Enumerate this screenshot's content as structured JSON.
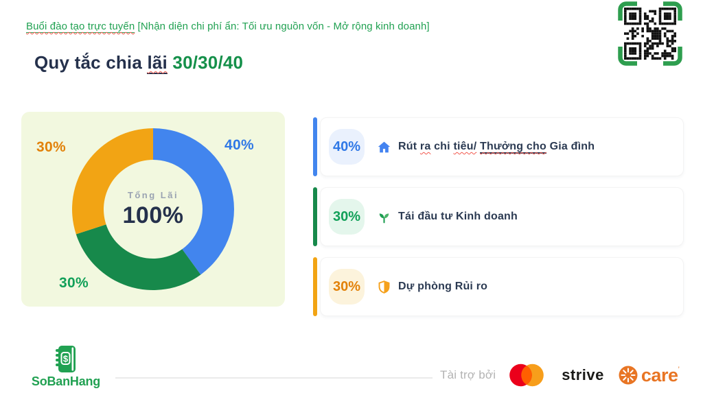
{
  "header": {
    "link_text": "Buổi đào tạo trực tuyến",
    "rest_text": " [Nhận diện chi phí ẩn: Tối ưu nguồn vốn - Mở rộng kinh doanh]"
  },
  "title": {
    "prefix": "Quy tắc chia ",
    "underlined": "lãi",
    "highlight": "30/30/40"
  },
  "chart_data": {
    "type": "pie",
    "subtype": "donut",
    "values": [
      40,
      30,
      30
    ],
    "segment_labels": [
      "40%",
      "30%",
      "30%"
    ],
    "segment_colors": [
      "blue",
      "green",
      "orange"
    ],
    "legend": [
      "Rút ra chi tiêu/ Thưởng cho Gia đình",
      "Tái đầu tư Kinh doanh",
      "Dự phòng Rủi ro"
    ],
    "center_label": "Tổng Lãi",
    "center_value": "100%",
    "start_angle_deg": 0,
    "direction": "clockwise"
  },
  "cards": [
    {
      "theme": "blue",
      "percent": "40%",
      "icon": "house-icon",
      "parts": [
        {
          "t": "Rút "
        },
        {
          "t": "ra",
          "m": "w"
        },
        {
          "t": " chi "
        },
        {
          "t": "tiêu/",
          "m": "w"
        },
        {
          "t": " "
        },
        {
          "t": "Thưởng cho",
          "m": "uw"
        },
        {
          "t": " Gia đình"
        }
      ]
    },
    {
      "theme": "green",
      "percent": "30%",
      "icon": "seedling-icon",
      "parts": [
        {
          "t": "Tái đầu tư Kinh doanh"
        }
      ]
    },
    {
      "theme": "orange",
      "percent": "30%",
      "icon": "shield-icon",
      "parts": [
        {
          "t": "Dự phòng Rủi ro"
        }
      ]
    }
  ],
  "footer": {
    "brand": "SoBanHang",
    "brand_symbol": "$",
    "sponsored_label": "Tài trợ bởi",
    "strive": "strive",
    "care": "care",
    "care_mark": "’"
  },
  "colors": {
    "blue": "#4285EE",
    "green": "#17894B",
    "orange": "#F2A414",
    "blue_text": "#2F78E6",
    "green_text": "#12A059",
    "orange_text": "#E28109",
    "navy": "#25314C",
    "brand_green": "#21A152",
    "title_green": "#15904A",
    "chart_bg": "#F2F8DF",
    "badge_blue_bg": "#EAF1FD",
    "badge_green_bg": "#E4F6EC",
    "badge_orange_bg": "#FCF3DC",
    "center_gray": "#9AA3B2",
    "gray_text": "#B3B3B3",
    "qr_green": "#2E9E4F",
    "mc_red": "#EB001B",
    "mc_orange": "#F79E1B",
    "mc_overlap": "#FF5F00",
    "care_orange": "#E87524",
    "strive_black": "#1A1A18",
    "house_blue": "#4483F0",
    "seedling_green": "#1E9E52",
    "seedling_light": "#4CB469",
    "shield_orange": "#F5A11C"
  }
}
